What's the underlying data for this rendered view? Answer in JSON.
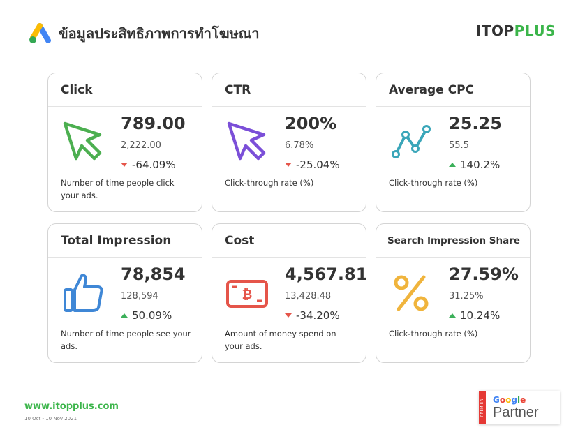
{
  "header": {
    "title": "ข้อมูลประสิทธิภาพการทำโฆษณา",
    "logo_icon": "google-ads-icon"
  },
  "brand": {
    "part1": "ITOP",
    "part2": "PLUS"
  },
  "cards": [
    {
      "title": "Click",
      "value": "789.00",
      "sub": "2,222.00",
      "change": "-64.09%",
      "direction": "down",
      "desc": "Number of time people click your ads.",
      "icon": "cursor-icon",
      "icon_color": "#4caf50"
    },
    {
      "title": "CTR",
      "value": "200%",
      "sub": "6.78%",
      "change": "-25.04%",
      "direction": "down",
      "desc": "Click-through rate (%)",
      "icon": "cursor-icon",
      "icon_color": "#7b4fd8"
    },
    {
      "title": "Average CPC",
      "value": "25.25",
      "sub": "55.5",
      "change": "140.2%",
      "direction": "up",
      "desc": "Click-through rate (%)",
      "icon": "line-chart-icon",
      "icon_color": "#3aa6b9"
    },
    {
      "title": "Total Impression",
      "value": "78,854",
      "sub": "128,594",
      "change": "50.09%",
      "direction": "up",
      "desc": "Number of time people see your ads.",
      "icon": "thumbs-up-icon",
      "icon_color": "#3f87d6"
    },
    {
      "title": "Cost",
      "value": "4,567.81",
      "sub": "13,428.48",
      "change": "-34.20%",
      "direction": "down",
      "desc": "Amount of money spend on your ads.",
      "icon": "bitcoin-card-icon",
      "icon_color": "#e5554a"
    },
    {
      "title": "Search Impression Share",
      "value": "27.59%",
      "sub": "31.25%",
      "change": "10.24%",
      "direction": "up",
      "desc": "Click-through rate (%)",
      "icon": "percent-icon",
      "icon_color": "#f0b43c"
    }
  ],
  "footer": {
    "url": "www.itopplus.com",
    "date": "10 Oct - 10 Nov 2021"
  },
  "partner": {
    "badge": "PREMIER",
    "google": "Google",
    "partner": "Partner"
  },
  "colors": {
    "accent_green": "#3bb54a",
    "down_red": "#e5554a",
    "up_green": "#3cb05a"
  }
}
